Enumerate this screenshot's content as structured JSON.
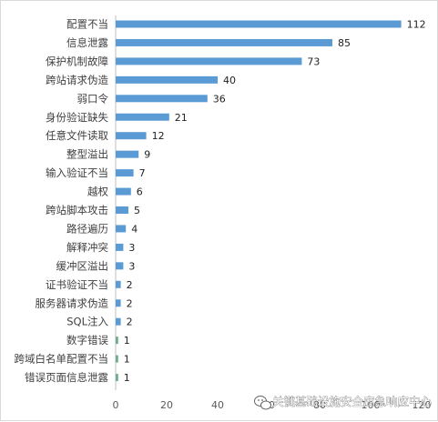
{
  "chart_data": {
    "type": "bar",
    "orientation": "horizontal",
    "categories": [
      "配置不当",
      "信息泄露",
      "保护机制故障",
      "跨站请求伪造",
      "弱口令",
      "身份验证缺失",
      "任意文件读取",
      "整型溢出",
      "输入验证不当",
      "越权",
      "跨站脚本攻击",
      "路径遍历",
      "解释冲突",
      "缓冲区溢出",
      "证书验证不当",
      "服务器请求伪造",
      "SQL注入",
      "数字错误",
      "跨域白名单配置不当",
      "错误页面信息泄露"
    ],
    "values": [
      112,
      85,
      73,
      40,
      36,
      21,
      12,
      9,
      7,
      6,
      5,
      4,
      3,
      3,
      2,
      2,
      2,
      1,
      1,
      1
    ],
    "x_ticks": [
      "0",
      "20",
      "40",
      "60",
      "80",
      "100",
      "120"
    ],
    "xlim": [
      0,
      120
    ],
    "grid": false,
    "legend": "none",
    "colors": {
      "bar": "#5b9bd5",
      "bar_small": "#70ad8c"
    }
  },
  "watermark": {
    "text": "关键基础设施安全应急响应中心",
    "icon": "wechat-icon"
  }
}
